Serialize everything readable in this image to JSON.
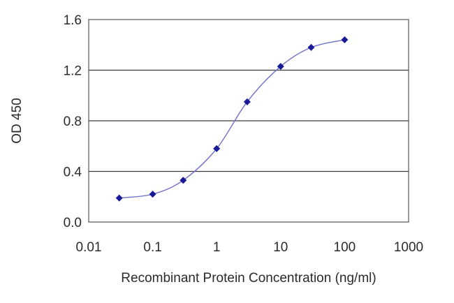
{
  "chart_data": {
    "type": "line",
    "title": "",
    "xlabel": "Recombinant Protein Concentration (ng/ml)",
    "ylabel": "OD 450",
    "x_scale": "log",
    "xlim": [
      0.01,
      1000
    ],
    "ylim": [
      0.0,
      1.6
    ],
    "x_ticks": [
      "0.01",
      "0.1",
      "1",
      "10",
      "100",
      "1000"
    ],
    "y_ticks": [
      "0.0",
      "0.4",
      "0.8",
      "1.2",
      "1.6"
    ],
    "grid": "horizontal",
    "legend": "none",
    "series": [
      {
        "x": [
          0.03,
          0.1,
          0.3,
          1,
          3,
          10,
          30,
          100
        ],
        "y": [
          0.19,
          0.22,
          0.33,
          0.58,
          0.95,
          1.23,
          1.38,
          1.44
        ],
        "color": "#1a1a99",
        "line_color": "#6f6fc8"
      }
    ]
  }
}
